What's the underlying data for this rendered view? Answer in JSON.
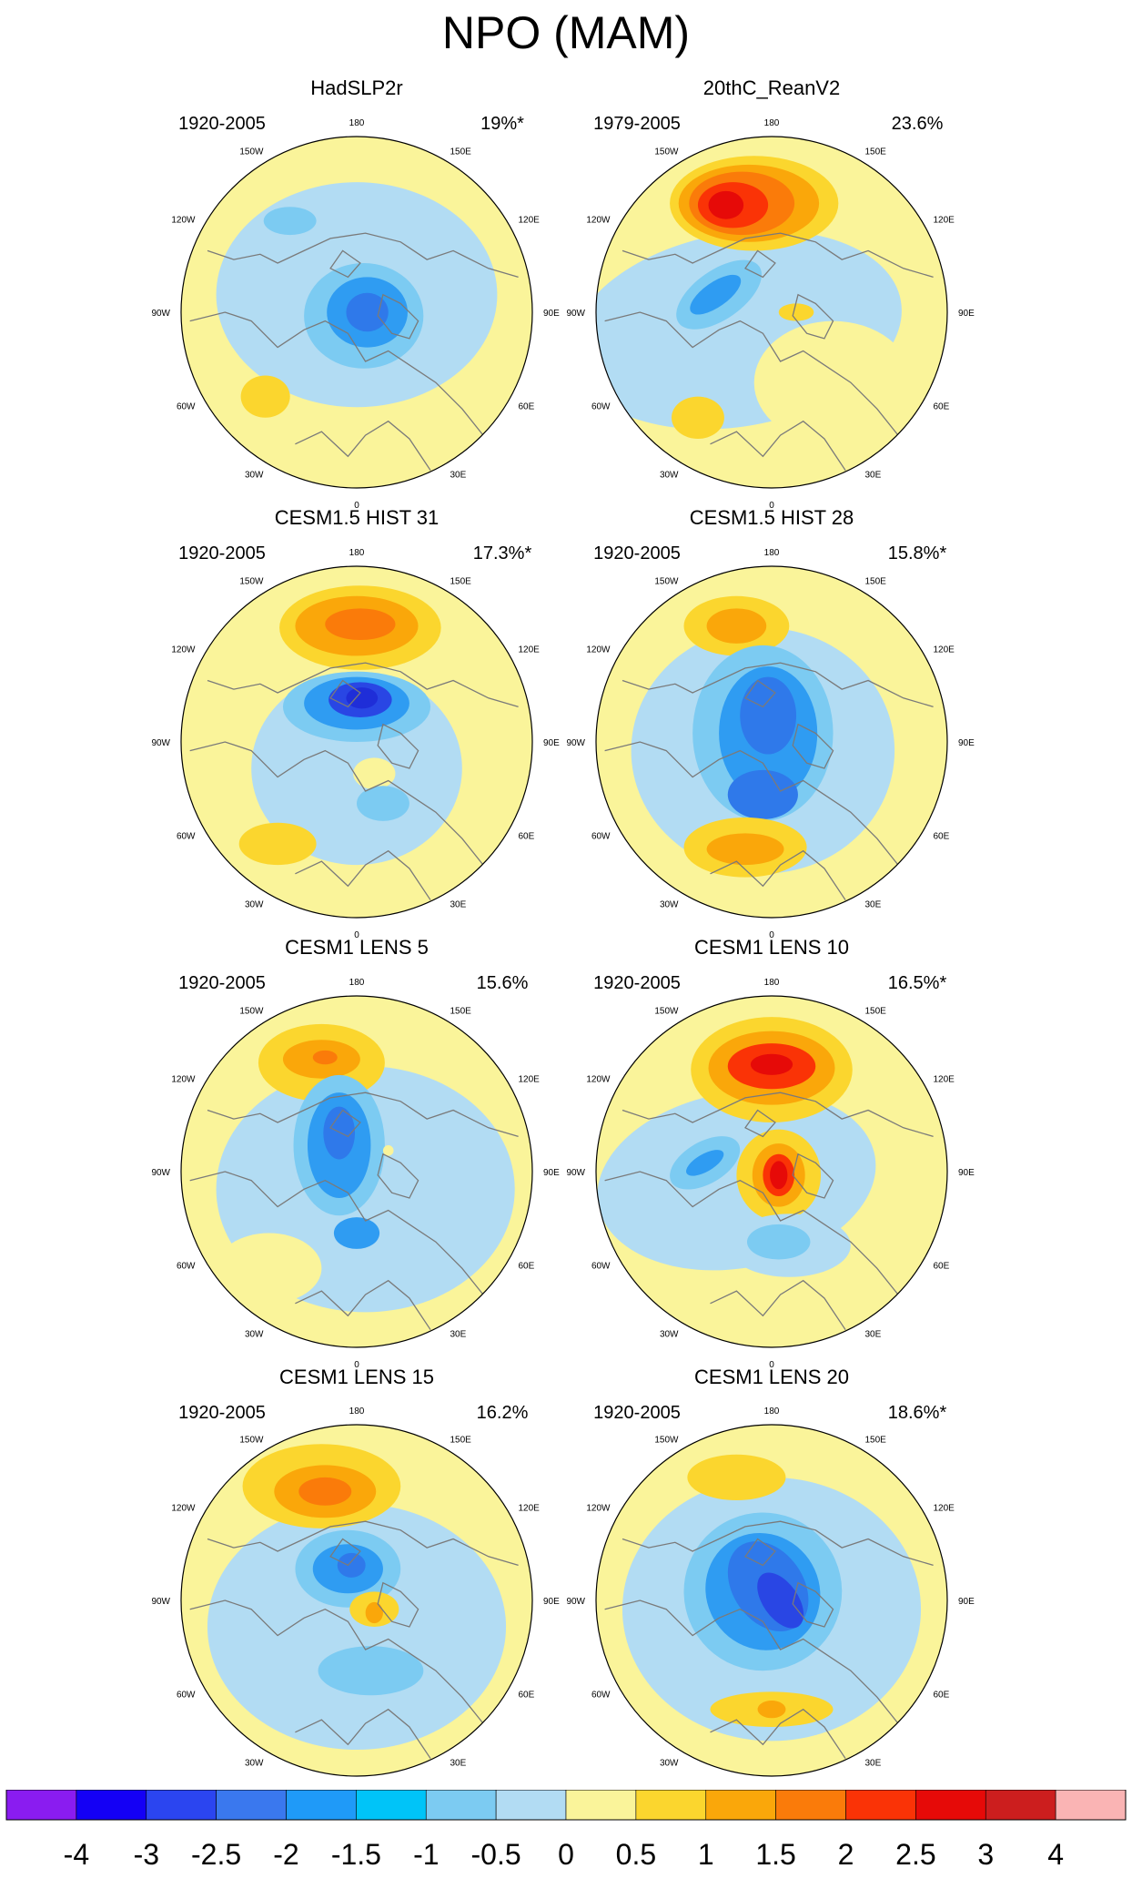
{
  "title": "NPO (MAM)",
  "lon_labels": [
    "180",
    "150E",
    "120E",
    "90E",
    "60E",
    "30E",
    "0",
    "30W",
    "60W",
    "90W",
    "120W",
    "150W"
  ],
  "colors": {
    "map_border": "#000000",
    "coast": "#7a7a7a",
    "label_bins": [
      "#8a1cf0",
      "#1400f5",
      "#2b45f0",
      "#3a78ee",
      "#1f9af8",
      "#00c4f8",
      "#7ccbf2",
      "#b2dcf3",
      "#faf49a",
      "#fbd62e",
      "#faa70a",
      "#fa7b0a",
      "#fa3306",
      "#e60a08",
      "#cc1e1e",
      "#fab4b4"
    ]
  },
  "chart_data": [
    {
      "type": "heatmap",
      "title": "HadSLP2r",
      "period": "1920-2005",
      "variance": "19%*"
    },
    {
      "type": "heatmap",
      "title": "20thC_ReanV2",
      "period": "1979-2005",
      "variance": "23.6%"
    },
    {
      "type": "heatmap",
      "title": "CESM1.5 HIST 31",
      "period": "1920-2005",
      "variance": "17.3%*"
    },
    {
      "type": "heatmap",
      "title": "CESM1.5 HIST 28",
      "period": "1920-2005",
      "variance": "15.8%*"
    },
    {
      "type": "heatmap",
      "title": "CESM1 LENS 5",
      "period": "1920-2005",
      "variance": "15.6%"
    },
    {
      "type": "heatmap",
      "title": "CESM1 LENS 10",
      "period": "1920-2005",
      "variance": "16.5%*"
    },
    {
      "type": "heatmap",
      "title": "CESM1 LENS 15",
      "period": "1920-2005",
      "variance": "16.2%"
    },
    {
      "type": "heatmap",
      "title": "CESM1 LENS 20",
      "period": "1920-2005",
      "variance": "18.6%*"
    }
  ],
  "colorbar": {
    "ticks": [
      "-4",
      "-3",
      "-2.5",
      "-2",
      "-1.5",
      "-1",
      "-0.5",
      "0",
      "0.5",
      "1",
      "1.5",
      "2",
      "2.5",
      "3",
      "4"
    ],
    "colors": [
      "#8a1cf0",
      "#1400f5",
      "#2b45f0",
      "#3a78ee",
      "#1f9af8",
      "#00c4f8",
      "#7ccbf2",
      "#b2dcf3",
      "#faf49a",
      "#fbd62e",
      "#faa70a",
      "#fa7b0a",
      "#fa3306",
      "#e60a08",
      "#cc1e1e",
      "#fab4b4"
    ]
  }
}
